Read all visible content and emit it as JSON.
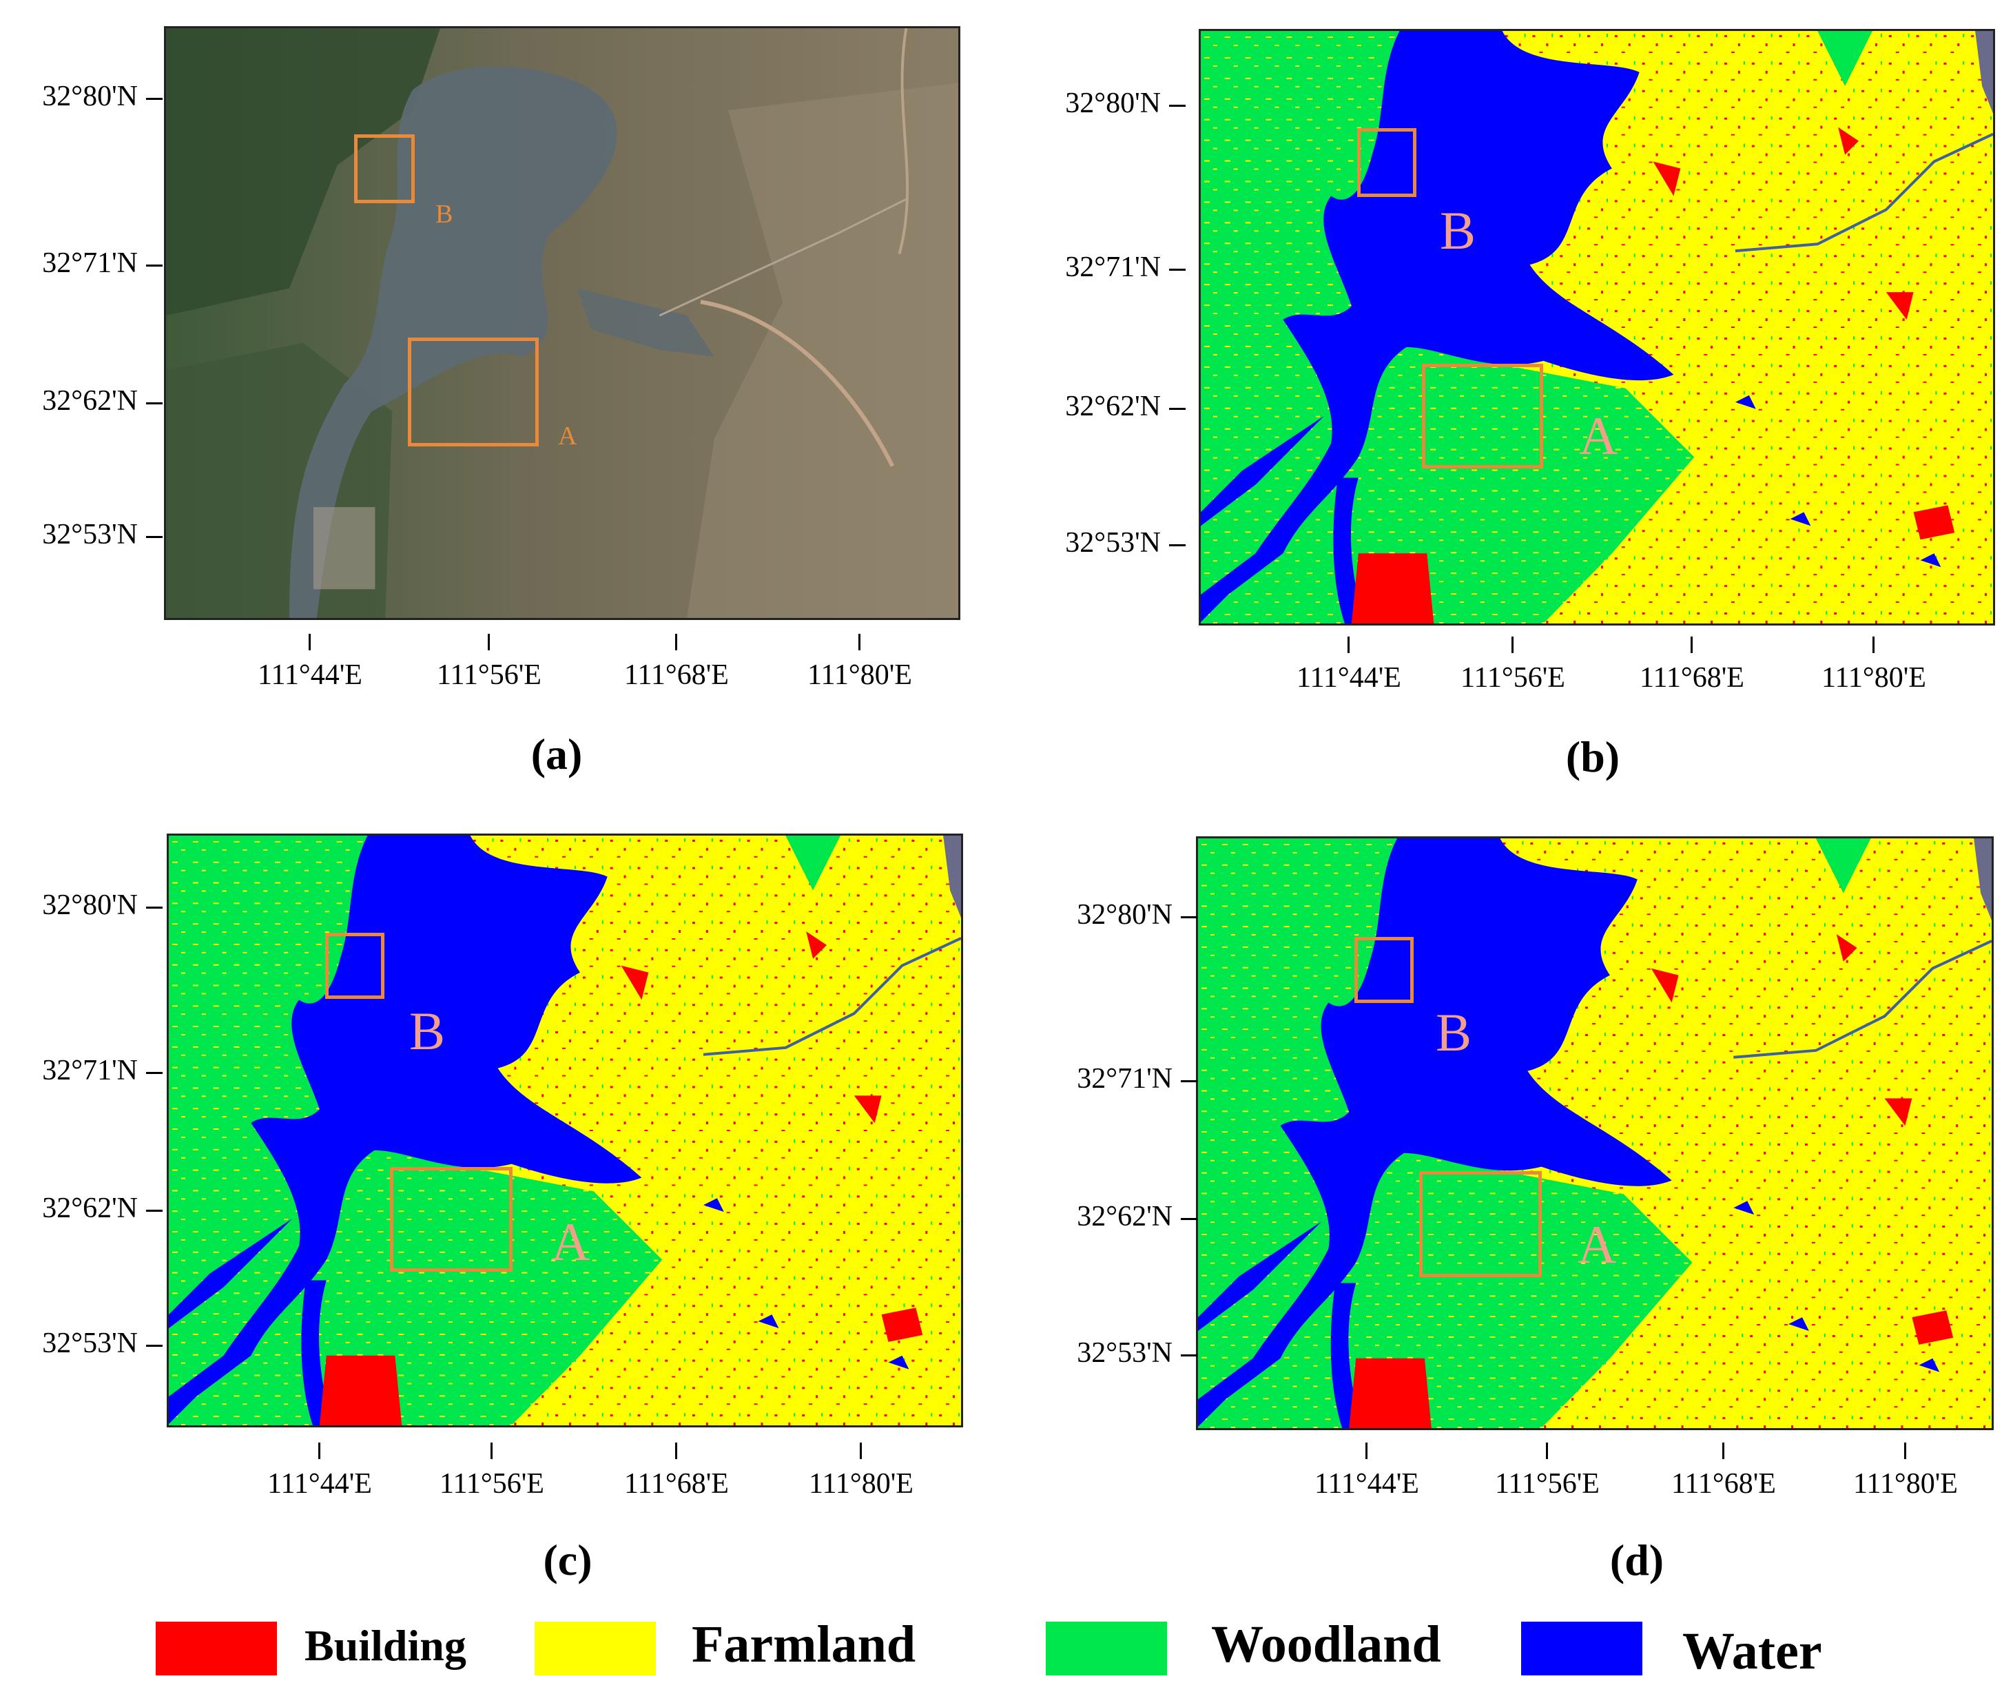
{
  "colors": {
    "building": "#ff0000",
    "farmland": "#ffff00",
    "woodland": "#00e64d",
    "water": "#0000ff",
    "box": "#e98a3a",
    "label": "#f2a08a"
  },
  "axes": {
    "lat_labels": [
      "32°80'N",
      "32°71'N",
      "32°62'N",
      "32°53'N"
    ],
    "lon_labels": [
      "111°44'E",
      "111°56'E",
      "111°68'E",
      "111°80'E"
    ]
  },
  "panels": [
    {
      "caption": "(a)",
      "kind": "satellite"
    },
    {
      "caption": "(b)",
      "kind": "classified"
    },
    {
      "caption": "(c)",
      "kind": "classified"
    },
    {
      "caption": "(d)",
      "kind": "classified"
    }
  ],
  "regions": {
    "a": "A",
    "b": "B"
  },
  "legend": [
    {
      "label": "Building",
      "color": "#ff0000"
    },
    {
      "label": "Farmland",
      "color": "#ffff00"
    },
    {
      "label": "Woodland",
      "color": "#00e64d"
    },
    {
      "label": "Water",
      "color": "#0000ff"
    }
  ]
}
